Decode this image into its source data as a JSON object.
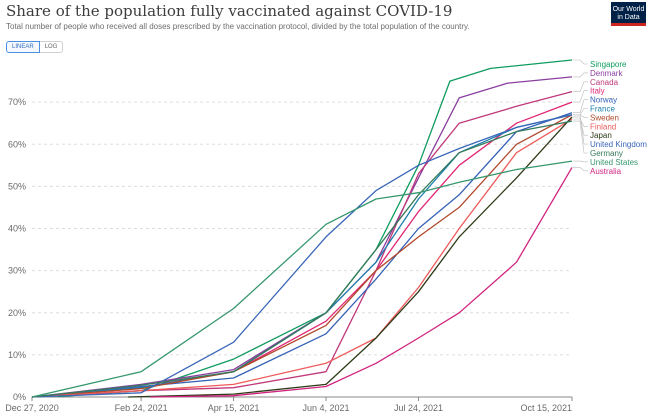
{
  "header": {
    "title": "Share of the population fully vaccinated against COVID-19",
    "subtitle": "Total number of people who received all doses prescribed by the vaccination protocol, divided by the total population of the country.",
    "logo_line1": "Our World",
    "logo_line2": "in Data"
  },
  "controls": {
    "linear_label": "LINEAR",
    "log_label": "LOG"
  },
  "chart_data": {
    "type": "line",
    "xlim": [
      "2020-12-27",
      "2021-10-15"
    ],
    "ylim": [
      0,
      80
    ],
    "y_unit": "%",
    "y_ticks": [
      "0%",
      "10%",
      "20%",
      "30%",
      "40%",
      "50%",
      "60%",
      "70%"
    ],
    "x_ticks": [
      "Dec 27, 2020",
      "Feb 24, 2021",
      "Apr 15, 2021",
      "Jun 4, 2021",
      "Jul 24, 2021",
      "Oct 15, 2021"
    ],
    "grid": true,
    "legend": "right, labels at line ends",
    "series": [
      {
        "name": "Singapore",
        "color": "#109b5e",
        "points": [
          [
            "2021-01-10",
            0.1
          ],
          [
            "2021-02-24",
            1.5
          ],
          [
            "2021-04-15",
            9
          ],
          [
            "2021-06-04",
            20
          ],
          [
            "2021-07-01",
            35
          ],
          [
            "2021-07-24",
            55
          ],
          [
            "2021-08-10",
            75
          ],
          [
            "2021-09-01",
            78
          ],
          [
            "2021-10-15",
            80
          ]
        ]
      },
      {
        "name": "Denmark",
        "color": "#8b3ea0",
        "points": [
          [
            "2020-12-27",
            0
          ],
          [
            "2021-02-24",
            3
          ],
          [
            "2021-04-15",
            6.5
          ],
          [
            "2021-06-04",
            20
          ],
          [
            "2021-07-01",
            32
          ],
          [
            "2021-07-24",
            52
          ],
          [
            "2021-08-15",
            71
          ],
          [
            "2021-09-10",
            74.5
          ],
          [
            "2021-10-15",
            76
          ]
        ]
      },
      {
        "name": "Canada",
        "color": "#c0397a",
        "points": [
          [
            "2020-12-27",
            0
          ],
          [
            "2021-02-24",
            1.5
          ],
          [
            "2021-04-15",
            2.2
          ],
          [
            "2021-06-04",
            6
          ],
          [
            "2021-07-01",
            30
          ],
          [
            "2021-07-24",
            53
          ],
          [
            "2021-08-15",
            65
          ],
          [
            "2021-09-15",
            69
          ],
          [
            "2021-10-15",
            72.5
          ]
        ]
      },
      {
        "name": "Italy",
        "color": "#e22573",
        "points": [
          [
            "2020-12-27",
            0
          ],
          [
            "2021-02-24",
            2.3
          ],
          [
            "2021-04-15",
            6
          ],
          [
            "2021-06-04",
            18
          ],
          [
            "2021-07-01",
            30
          ],
          [
            "2021-07-24",
            44
          ],
          [
            "2021-08-15",
            55
          ],
          [
            "2021-09-15",
            65
          ],
          [
            "2021-10-15",
            70
          ]
        ]
      },
      {
        "name": "Norway",
        "color": "#3562b6",
        "points": [
          [
            "2020-12-27",
            0
          ],
          [
            "2021-02-24",
            2.5
          ],
          [
            "2021-04-15",
            4.5
          ],
          [
            "2021-06-04",
            15
          ],
          [
            "2021-07-01",
            28
          ],
          [
            "2021-07-24",
            40
          ],
          [
            "2021-08-15",
            48
          ],
          [
            "2021-09-15",
            63
          ],
          [
            "2021-10-15",
            67.5
          ]
        ]
      },
      {
        "name": "France",
        "color": "#1d7fae",
        "points": [
          [
            "2020-12-27",
            0
          ],
          [
            "2021-02-24",
            2.2
          ],
          [
            "2021-04-15",
            6
          ],
          [
            "2021-06-04",
            20
          ],
          [
            "2021-07-01",
            32
          ],
          [
            "2021-07-24",
            47
          ],
          [
            "2021-08-15",
            58
          ],
          [
            "2021-09-15",
            64
          ],
          [
            "2021-10-15",
            67
          ]
        ]
      },
      {
        "name": "Sweden",
        "color": "#b1482b",
        "points": [
          [
            "2020-12-27",
            0
          ],
          [
            "2021-02-24",
            2
          ],
          [
            "2021-04-15",
            6
          ],
          [
            "2021-06-04",
            17
          ],
          [
            "2021-07-01",
            30
          ],
          [
            "2021-07-24",
            38
          ],
          [
            "2021-08-15",
            45
          ],
          [
            "2021-09-15",
            60
          ],
          [
            "2021-10-15",
            67
          ]
        ]
      },
      {
        "name": "Finland",
        "color": "#ee5b5b",
        "points": [
          [
            "2020-12-27",
            0
          ],
          [
            "2021-02-24",
            1.5
          ],
          [
            "2021-04-15",
            3
          ],
          [
            "2021-06-04",
            8
          ],
          [
            "2021-07-01",
            14
          ],
          [
            "2021-07-24",
            26
          ],
          [
            "2021-08-15",
            40
          ],
          [
            "2021-09-15",
            58
          ],
          [
            "2021-10-15",
            66
          ]
        ]
      },
      {
        "name": "Japan",
        "color": "#2d3a16",
        "points": [
          [
            "2021-02-17",
            0
          ],
          [
            "2021-04-15",
            0.7
          ],
          [
            "2021-06-04",
            3
          ],
          [
            "2021-07-01",
            14
          ],
          [
            "2021-07-24",
            25
          ],
          [
            "2021-08-15",
            38
          ],
          [
            "2021-09-15",
            52
          ],
          [
            "2021-10-15",
            66.5
          ]
        ]
      },
      {
        "name": "United Kingdom",
        "color": "#3a67b8",
        "points": [
          [
            "2020-12-27",
            0
          ],
          [
            "2021-02-24",
            1
          ],
          [
            "2021-04-15",
            13
          ],
          [
            "2021-06-04",
            38
          ],
          [
            "2021-07-01",
            49
          ],
          [
            "2021-07-24",
            55
          ],
          [
            "2021-08-15",
            59
          ],
          [
            "2021-09-15",
            64
          ],
          [
            "2021-10-15",
            67
          ]
        ]
      },
      {
        "name": "Germany",
        "color": "#357a5b",
        "points": [
          [
            "2020-12-27",
            0
          ],
          [
            "2021-02-24",
            2.8
          ],
          [
            "2021-04-15",
            6
          ],
          [
            "2021-06-04",
            20
          ],
          [
            "2021-07-01",
            35
          ],
          [
            "2021-07-24",
            48
          ],
          [
            "2021-08-15",
            58
          ],
          [
            "2021-09-15",
            63
          ],
          [
            "2021-10-15",
            65.5
          ]
        ]
      },
      {
        "name": "United States",
        "color": "#36976e",
        "points": [
          [
            "2020-12-27",
            0
          ],
          [
            "2021-02-24",
            6
          ],
          [
            "2021-04-15",
            21
          ],
          [
            "2021-06-04",
            41
          ],
          [
            "2021-07-01",
            47
          ],
          [
            "2021-07-24",
            48.5
          ],
          [
            "2021-08-15",
            51
          ],
          [
            "2021-09-15",
            54
          ],
          [
            "2021-10-15",
            56
          ]
        ]
      },
      {
        "name": "Australia",
        "color": "#d1237f",
        "points": [
          [
            "2021-03-01",
            0
          ],
          [
            "2021-04-15",
            0.3
          ],
          [
            "2021-06-04",
            2.5
          ],
          [
            "2021-07-01",
            8
          ],
          [
            "2021-07-24",
            14
          ],
          [
            "2021-08-15",
            20
          ],
          [
            "2021-09-15",
            32
          ],
          [
            "2021-10-15",
            54.5
          ]
        ]
      }
    ]
  }
}
